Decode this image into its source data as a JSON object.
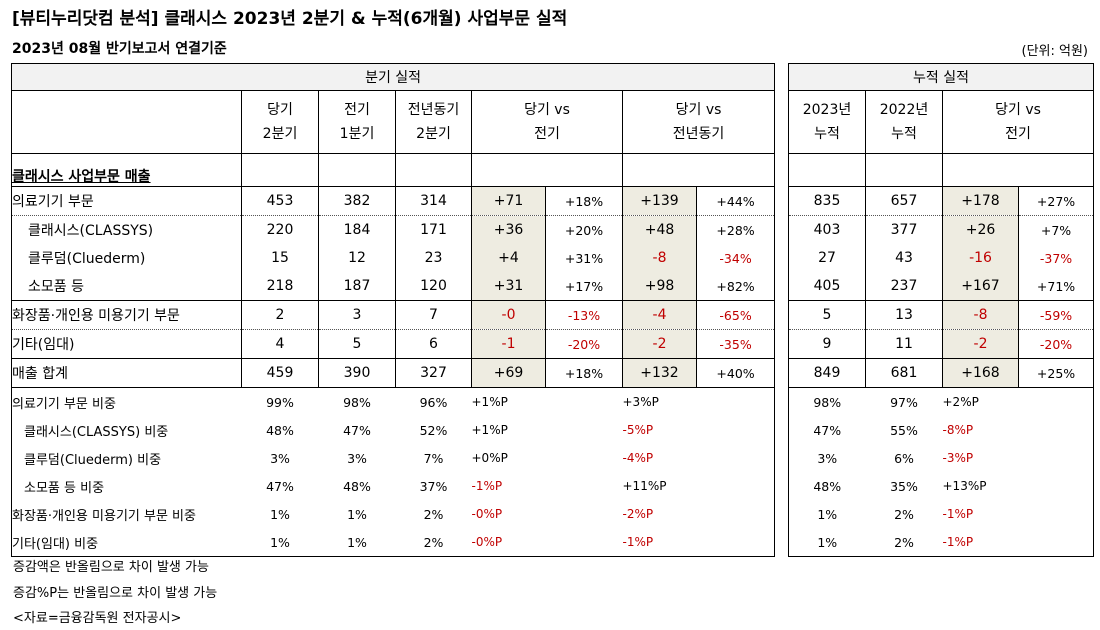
{
  "title": "[뷰티누리닷컴 분석] 클래시스 2023년 2분기 & 누적(6개월) 사업부문 실적",
  "subtitle": "2023년 08월 반기보고서 연결기준",
  "unit": "(단위: 억원)",
  "left": {
    "group_header": "분기 실적",
    "cols": [
      {
        "l1": "당기",
        "l2": "2분기"
      },
      {
        "l1": "전기",
        "l2": "1분기"
      },
      {
        "l1": "전년동기",
        "l2": "2분기"
      },
      {
        "l1": "당기 vs",
        "l2": "전기"
      },
      {
        "l1": "당기 vs",
        "l2": "전년동기"
      }
    ]
  },
  "right": {
    "group_header": "누적 실적",
    "cols": [
      {
        "l1": "2023년",
        "l2": "누적"
      },
      {
        "l1": "2022년",
        "l2": "누적"
      },
      {
        "l1": "당기 vs",
        "l2": "전기"
      }
    ]
  },
  "section_label": "클래시스 사업부문 매출",
  "rows": [
    {
      "label": "의료기기 부문",
      "q": [
        "453",
        "382",
        "314"
      ],
      "qvp": [
        "+71",
        "+18%"
      ],
      "qvy": [
        "+139",
        "+44%"
      ],
      "cum": [
        "835",
        "657"
      ],
      "cv": [
        "+178",
        "+27%"
      ]
    },
    {
      "label": "클래시스(CLASSYS)",
      "q": [
        "220",
        "184",
        "171"
      ],
      "qvp": [
        "+36",
        "+20%"
      ],
      "qvy": [
        "+48",
        "+28%"
      ],
      "cum": [
        "403",
        "377"
      ],
      "cv": [
        "+26",
        "+7%"
      ]
    },
    {
      "label": "클루덤(Cluederm)",
      "q": [
        "15",
        "12",
        "23"
      ],
      "qvp": [
        "+4",
        "+31%"
      ],
      "qvy": [
        "-8",
        "-34%"
      ],
      "cum": [
        "27",
        "43"
      ],
      "cv": [
        "-16",
        "-37%"
      ]
    },
    {
      "label": "소모품 등",
      "q": [
        "218",
        "187",
        "120"
      ],
      "qvp": [
        "+31",
        "+17%"
      ],
      "qvy": [
        "+98",
        "+82%"
      ],
      "cum": [
        "405",
        "237"
      ],
      "cv": [
        "+167",
        "+71%"
      ]
    },
    {
      "label": "화장품·개인용 미용기기 부문",
      "q": [
        "2",
        "3",
        "7"
      ],
      "qvp": [
        "-0",
        "-13%"
      ],
      "qvy": [
        "-4",
        "-65%"
      ],
      "cum": [
        "5",
        "13"
      ],
      "cv": [
        "-8",
        "-59%"
      ]
    },
    {
      "label": "기타(임대)",
      "q": [
        "4",
        "5",
        "6"
      ],
      "qvp": [
        "-1",
        "-20%"
      ],
      "qvy": [
        "-2",
        "-35%"
      ],
      "cum": [
        "9",
        "11"
      ],
      "cv": [
        "-2",
        "-20%"
      ]
    },
    {
      "label": "매출 합계",
      "q": [
        "459",
        "390",
        "327"
      ],
      "qvp": [
        "+69",
        "+18%"
      ],
      "qvy": [
        "+132",
        "+40%"
      ],
      "cum": [
        "849",
        "681"
      ],
      "cv": [
        "+168",
        "+25%"
      ]
    }
  ],
  "share_rows": [
    {
      "label": "의료기기 부문 비중",
      "q": [
        "99%",
        "98%",
        "96%"
      ],
      "qvp": "+1%P",
      "qvy": "+3%P",
      "cum": [
        "98%",
        "97%"
      ],
      "cv": "+2%P"
    },
    {
      "label": "클래시스(CLASSYS) 비중",
      "q": [
        "48%",
        "47%",
        "52%"
      ],
      "qvp": "+1%P",
      "qvy": "-5%P",
      "cum": [
        "47%",
        "55%"
      ],
      "cv": "-8%P"
    },
    {
      "label": "클루덤(Cluederm) 비중",
      "q": [
        "3%",
        "3%",
        "7%"
      ],
      "qvp": "+0%P",
      "qvy": "-4%P",
      "cum": [
        "3%",
        "6%"
      ],
      "cv": "-3%P"
    },
    {
      "label": "소모품 등 비중",
      "q": [
        "47%",
        "48%",
        "37%"
      ],
      "qvp": "-1%P",
      "qvy": "+11%P",
      "cum": [
        "48%",
        "35%"
      ],
      "cv": "+13%P"
    },
    {
      "label": "화장품·개인용 미용기기 부문 비중",
      "q": [
        "1%",
        "1%",
        "2%"
      ],
      "qvp": "-0%P",
      "qvy": "-2%P",
      "cum": [
        "1%",
        "2%"
      ],
      "cv": "-1%P"
    },
    {
      "label": "기타(임대) 비중",
      "q": [
        "1%",
        "1%",
        "2%"
      ],
      "qvp": "-0%P",
      "qvy": "-1%P",
      "cum": [
        "1%",
        "2%"
      ],
      "cv": "-1%P"
    }
  ],
  "colors": {
    "negative": "#c00000",
    "highlight": "#eeece1",
    "header_bg": "#f2f2f2"
  },
  "footnotes": [
    "증감액은 반올림으로 차이 발생 가능",
    "증감%P는 반올림으로 차이 발생 가능",
    "<자료=금융감독원 전자공시>"
  ]
}
